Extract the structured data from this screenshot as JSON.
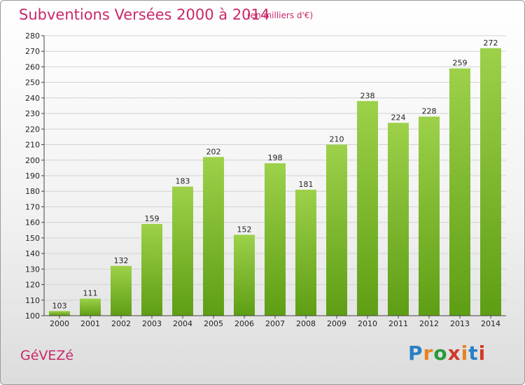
{
  "header": {
    "title": "Subventions Versées 2000 à 2014",
    "unit": "(en milliers d'€)"
  },
  "footer": {
    "city": "GéVEZé",
    "logo": {
      "letters": [
        "P",
        "r",
        "o",
        "x",
        "i",
        "t",
        "i"
      ],
      "colors": [
        "#2a7fc4",
        "#e8821e",
        "#2a9a3a",
        "#d23a2a",
        "#e8821e",
        "#2a7fc4",
        "#d23a2a"
      ]
    }
  },
  "chart_data": {
    "type": "bar",
    "categories": [
      "2000",
      "2001",
      "2002",
      "2003",
      "2004",
      "2005",
      "2006",
      "2007",
      "2008",
      "2009",
      "2010",
      "2011",
      "2012",
      "2013",
      "2014"
    ],
    "values": [
      103,
      111,
      132,
      159,
      183,
      202,
      152,
      198,
      181,
      210,
      238,
      224,
      228,
      259,
      272
    ],
    "title": "Subventions Versées 2000 à 2014",
    "xlabel": "",
    "ylabel": "",
    "ylim": [
      100,
      280
    ],
    "ytick_step": 10,
    "grid": true,
    "bar_color": "#7cc02e"
  }
}
